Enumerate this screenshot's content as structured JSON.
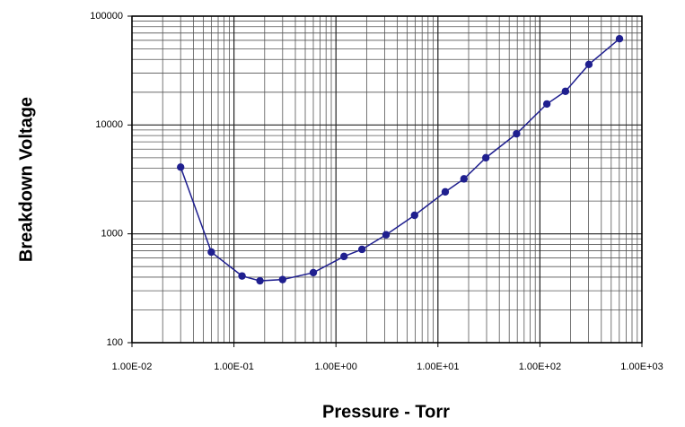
{
  "chart_data": {
    "type": "line",
    "xlabel": "Pressure - Torr",
    "ylabel": "Breakdown Voltage",
    "x": [
      0.03,
      0.06,
      0.12,
      0.18,
      0.3,
      0.6,
      1.2,
      1.8,
      3.1,
      5.9,
      11.8,
      18,
      29.5,
      59,
      117,
      178,
      302,
      603
    ],
    "series": [
      {
        "name": "Breakdown Voltage",
        "color": "#1f1f8f",
        "values": [
          4100,
          680,
          410,
          370,
          380,
          440,
          620,
          720,
          980,
          1480,
          2430,
          3200,
          5000,
          8300,
          15600,
          20400,
          36000,
          62000
        ]
      }
    ],
    "xlim": [
      0.01,
      1000
    ],
    "ylim": [
      100,
      100000
    ],
    "xscale": "log",
    "yscale": "log",
    "xticks": [
      {
        "value": 0.01,
        "label": "1.00E-02"
      },
      {
        "value": 0.1,
        "label": "1.00E-01"
      },
      {
        "value": 1,
        "label": "1.00E+00"
      },
      {
        "value": 10,
        "label": "1.00E+01"
      },
      {
        "value": 100,
        "label": "1.00E+02"
      },
      {
        "value": 1000,
        "label": "1.00E+03"
      }
    ],
    "yticks": [
      100,
      1000,
      10000,
      100000
    ],
    "grid": true
  }
}
